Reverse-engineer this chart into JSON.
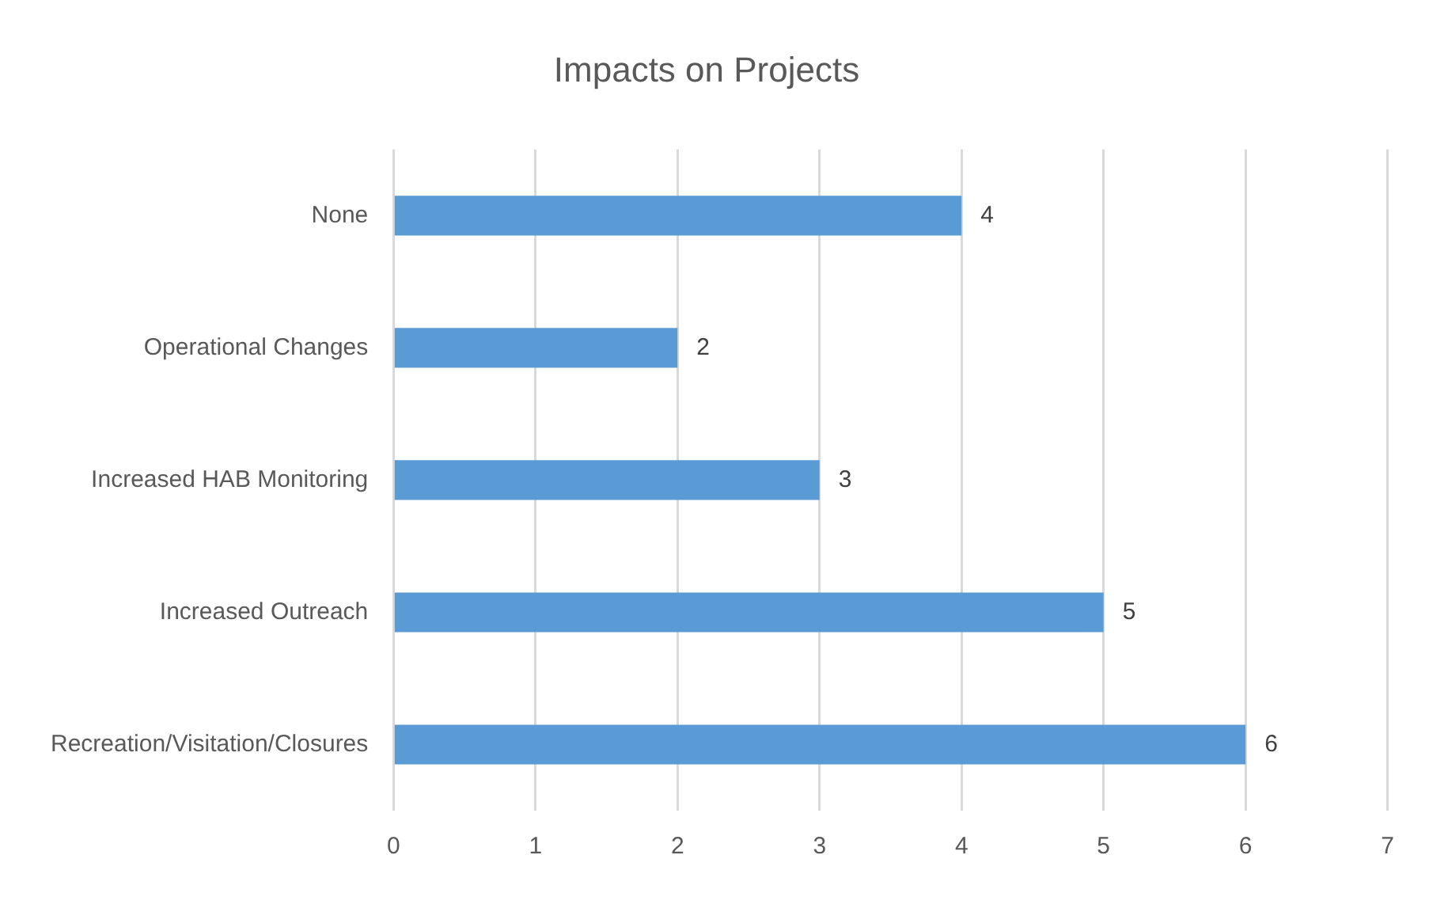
{
  "chart_data": {
    "type": "bar",
    "title": "Impacts on Projects",
    "orientation": "horizontal",
    "categories": [
      "None",
      "Operational Changes",
      "Increased HAB Monitoring",
      "Increased Outreach",
      "Recreation/Visitation/Closures"
    ],
    "values": [
      4,
      2,
      3,
      5,
      6
    ],
    "color": "#5b9bd5",
    "xlim": [
      0,
      7
    ],
    "xticks": [
      0,
      1,
      2,
      3,
      4,
      5,
      6,
      7
    ],
    "grid": "x",
    "legend": false,
    "data_labels": true
  }
}
